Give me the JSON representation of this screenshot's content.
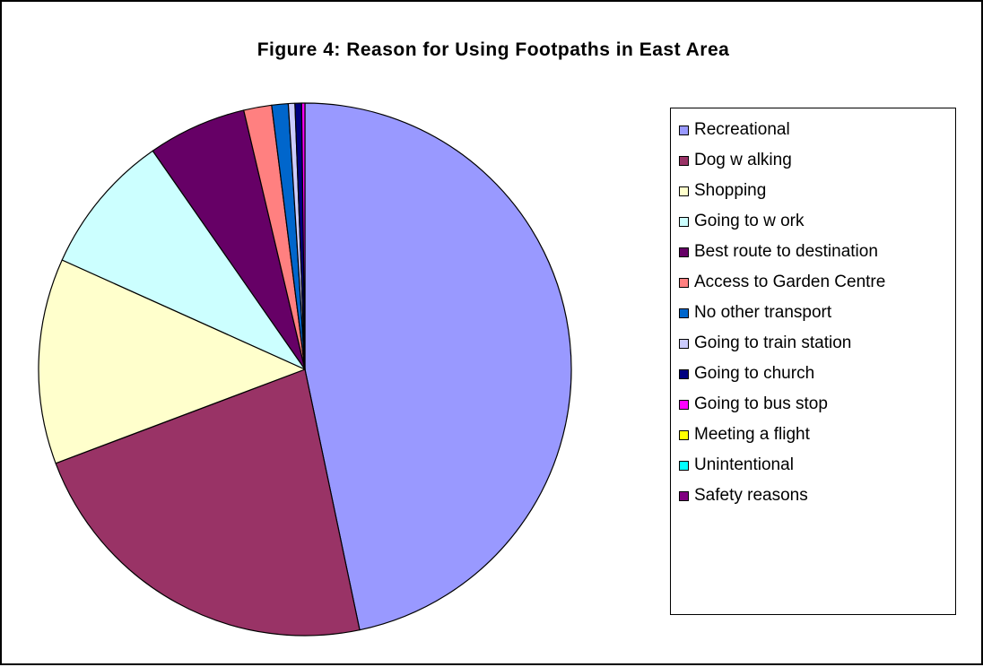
{
  "chart_data": {
    "type": "pie",
    "title": "Figure 4: Reason for Using Footpaths in East Area",
    "legend_position": "right",
    "slice_start": "12 o'clock, clockwise",
    "slices": [
      {
        "label": "Recreational",
        "value": 46.8,
        "color": "#9999ff"
      },
      {
        "label": "Dog w alking",
        "value": 22.6,
        "color": "#993366"
      },
      {
        "label": "Shopping",
        "value": 12.5,
        "color": "#ffffcc"
      },
      {
        "label": "Going to w ork",
        "value": 8.6,
        "color": "#ccffff"
      },
      {
        "label": "Best route to destination",
        "value": 6.0,
        "color": "#660066"
      },
      {
        "label": "Access to Garden Centre",
        "value": 1.7,
        "color": "#ff8080"
      },
      {
        "label": "No other transport",
        "value": 1.0,
        "color": "#0066cc"
      },
      {
        "label": "Going to train station",
        "value": 0.4,
        "color": "#ccccff"
      },
      {
        "label": "Going to church",
        "value": 0.4,
        "color": "#000080"
      },
      {
        "label": "Going to bus stop",
        "value": 0.2,
        "color": "#ff00ff"
      },
      {
        "label": "Meeting a flight",
        "value": 0,
        "color": "#ffff00"
      },
      {
        "label": "Unintentional",
        "value": 0,
        "color": "#00ffff"
      },
      {
        "label": "Safety reasons",
        "value": 0,
        "color": "#800080"
      }
    ]
  }
}
